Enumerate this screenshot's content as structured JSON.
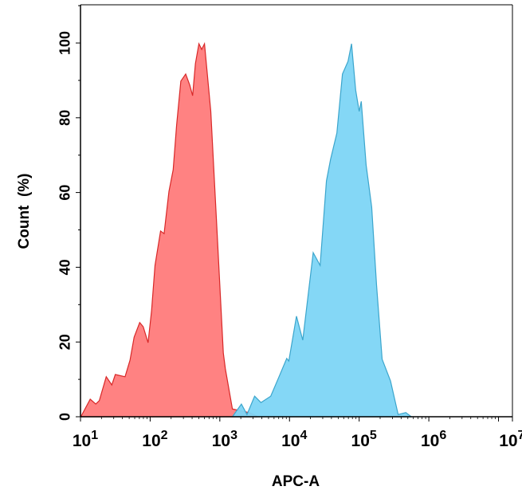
{
  "chart_data": {
    "type": "area",
    "title": "",
    "xlabel": "APC-A",
    "ylabel": "Count  (%)",
    "x_scale": "log10",
    "xlim_log10": [
      1,
      7.2
    ],
    "ylim": [
      0,
      110
    ],
    "x_ticks": [
      {
        "base": "10",
        "exp": "1"
      },
      {
        "base": "10",
        "exp": "2"
      },
      {
        "base": "10",
        "exp": "3"
      },
      {
        "base": "10",
        "exp": "4"
      },
      {
        "base": "10",
        "exp": "5"
      },
      {
        "base": "10",
        "exp": "6"
      },
      {
        "base": "10",
        "exp": "7.2"
      }
    ],
    "y_ticks": [
      "0",
      "20",
      "40",
      "60",
      "80",
      "100"
    ],
    "grid": false,
    "series": [
      {
        "color": "#ff7b7b",
        "stroke": "#d82828",
        "log10_x": [
          1.01,
          1.14,
          1.22,
          1.27,
          1.37,
          1.45,
          1.5,
          1.64,
          1.71,
          1.77,
          1.85,
          1.9,
          1.97,
          2.02,
          2.07,
          2.15,
          2.2,
          2.27,
          2.33,
          2.38,
          2.44,
          2.51,
          2.57,
          2.61,
          2.65,
          2.7,
          2.74,
          2.78,
          2.87,
          2.97,
          3.05,
          3.08,
          3.18,
          3.27,
          3.42,
          3.53
        ],
        "y": [
          0.2,
          4.7,
          3.4,
          4.3,
          10.7,
          8.5,
          11.3,
          10.7,
          15.1,
          21.3,
          25.2,
          24.1,
          19.8,
          28.4,
          40.5,
          49.7,
          49.0,
          60.3,
          66.1,
          78.0,
          89.8,
          91.7,
          88.7,
          85.9,
          94.5,
          99.8,
          98.3,
          99.8,
          81.7,
          46.1,
          17.1,
          12.8,
          2.1,
          1.7,
          1.1,
          0.2
        ]
      },
      {
        "color": "#7dd5f5",
        "stroke": "#3ba5cc",
        "log10_x": [
          3.18,
          3.31,
          3.39,
          3.5,
          3.59,
          3.73,
          3.85,
          3.96,
          3.99,
          4.1,
          4.19,
          4.34,
          4.44,
          4.53,
          4.59,
          4.68,
          4.76,
          4.84,
          4.89,
          4.95,
          5.0,
          5.03,
          5.1,
          5.18,
          5.25,
          5.33,
          5.45,
          5.56,
          5.67,
          5.75
        ],
        "y": [
          0,
          3.4,
          0.6,
          5.5,
          3.8,
          5.5,
          10.7,
          15.6,
          14.9,
          26.9,
          20.5,
          43.9,
          40.5,
          63.1,
          68.9,
          75.9,
          91.7,
          95.1,
          99.8,
          87.4,
          81.7,
          84.4,
          67.4,
          56.1,
          35.2,
          15.4,
          9.6,
          0.6,
          1.1,
          0
        ]
      }
    ]
  }
}
